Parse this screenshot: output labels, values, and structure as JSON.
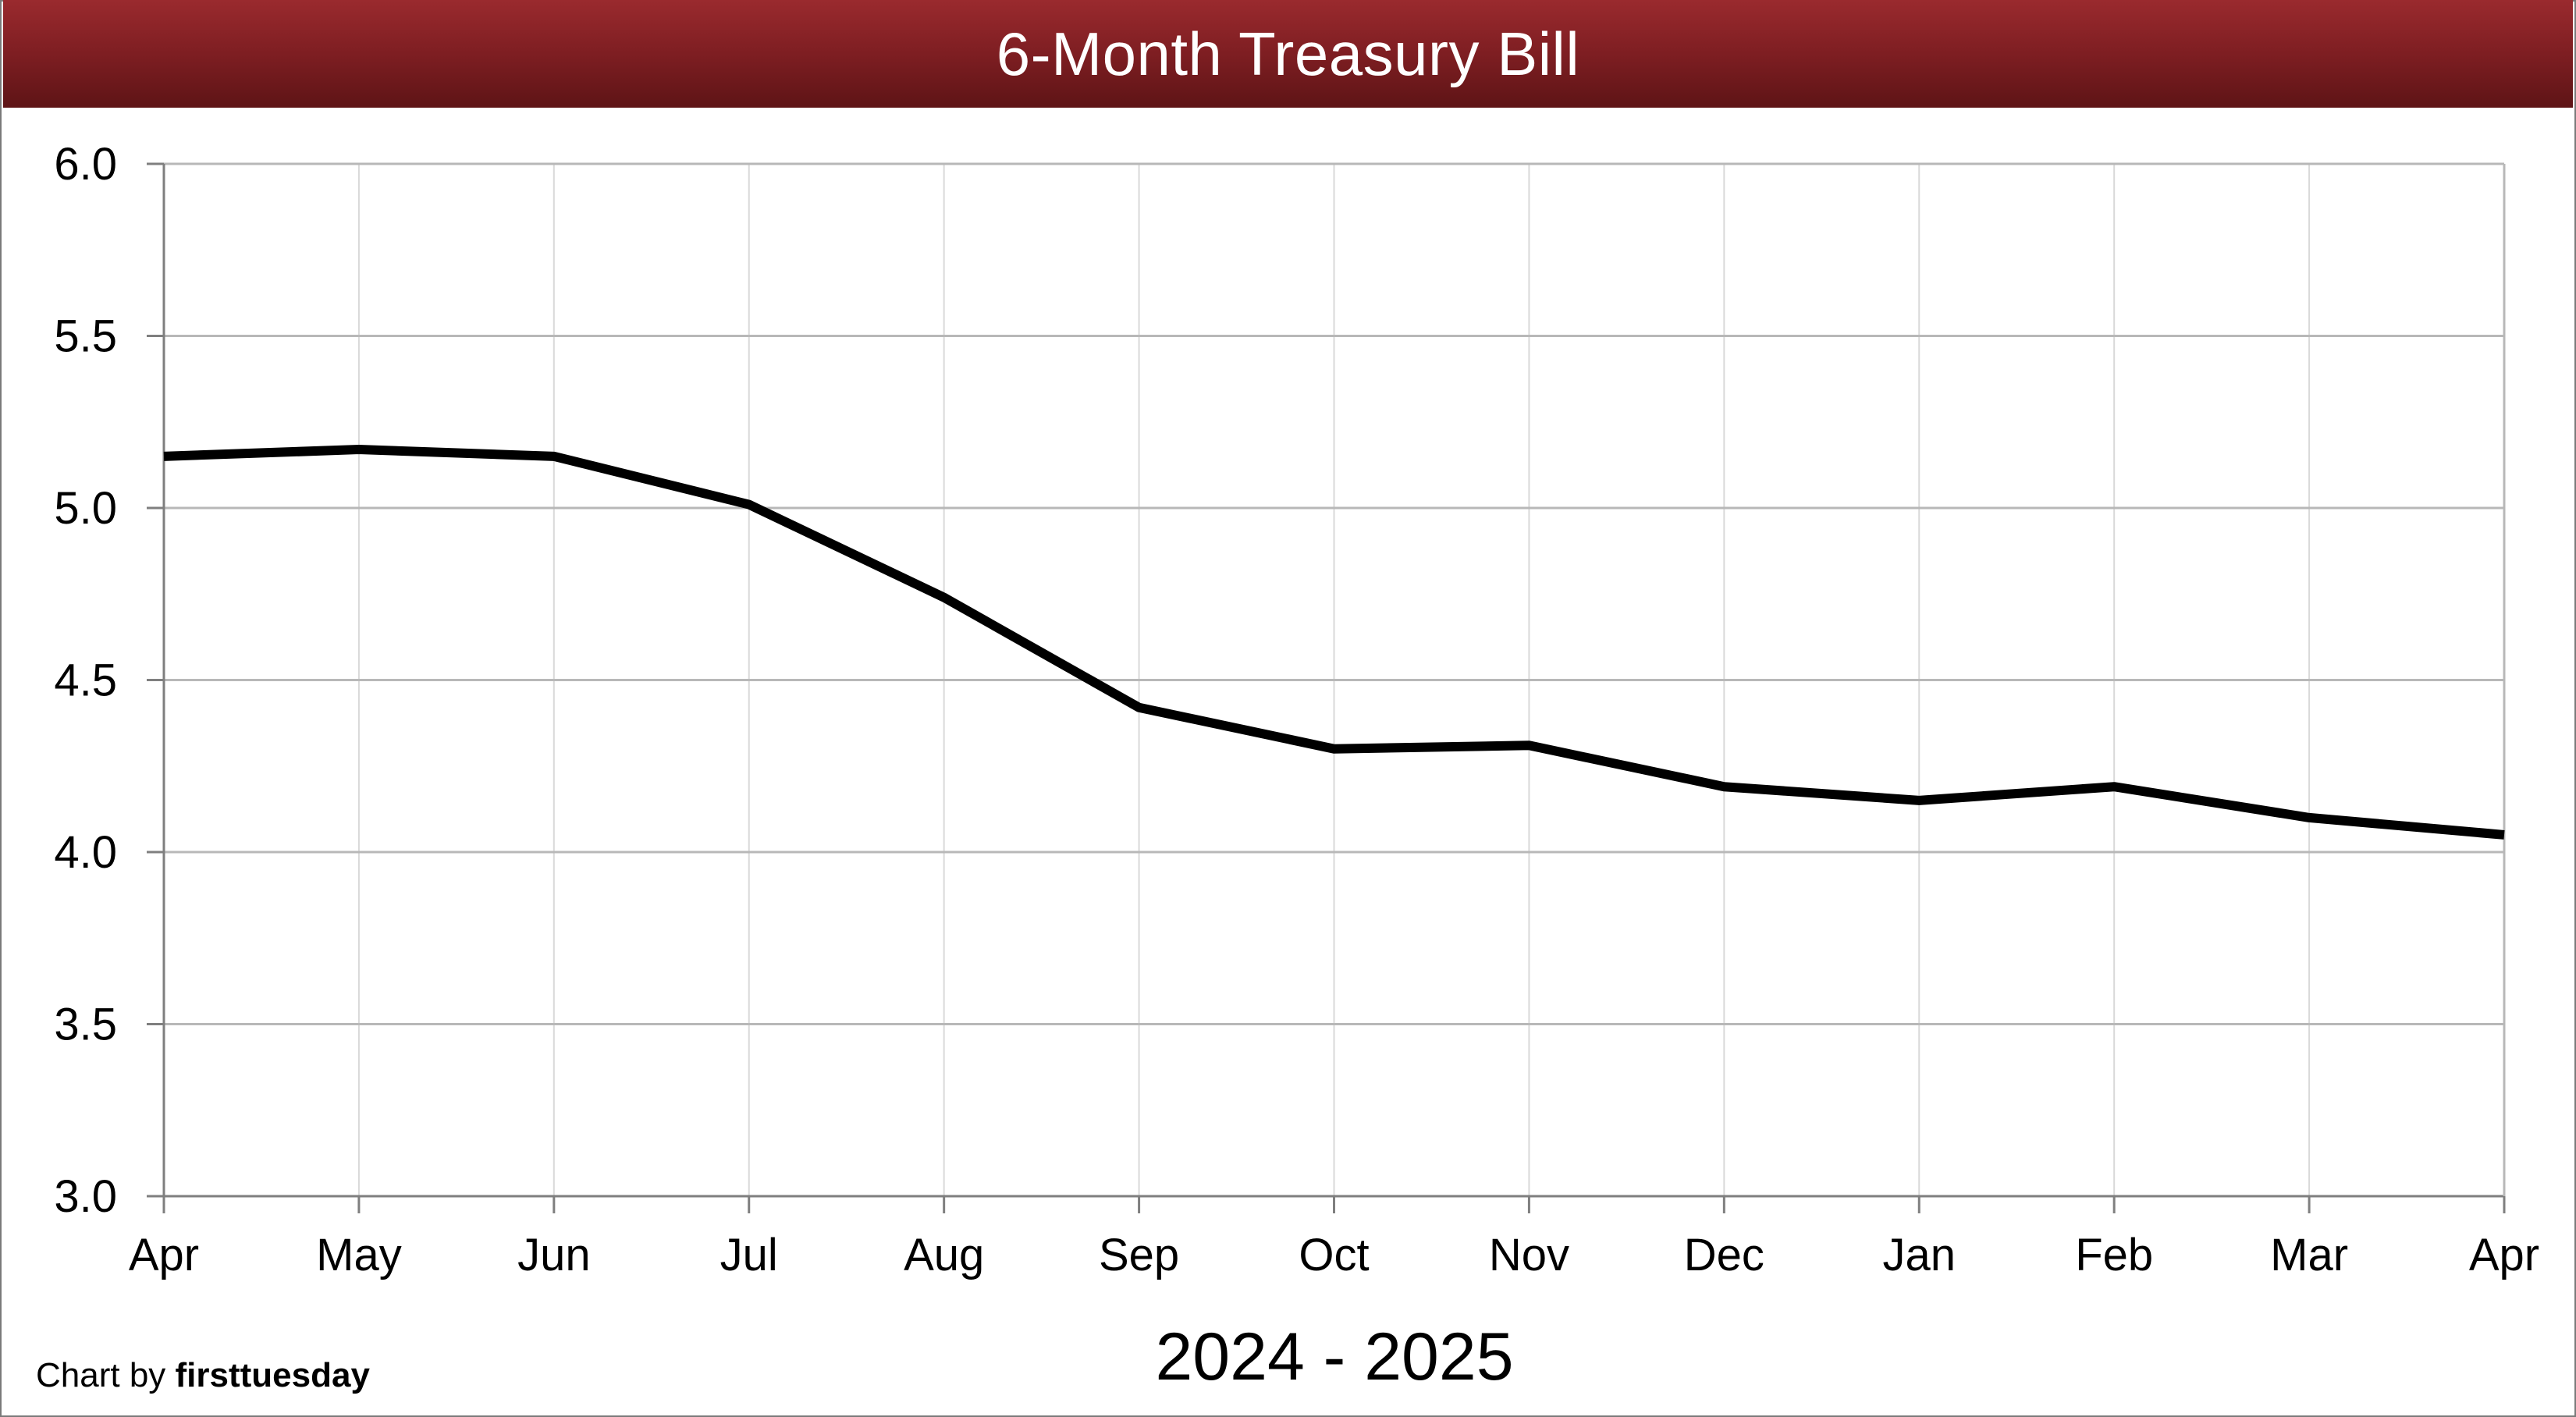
{
  "chart_data": {
    "type": "line",
    "title": "6-Month Treasury Bill",
    "xlabel": "2024 - 2025",
    "ylabel": "",
    "categories": [
      "Apr",
      "May",
      "Jun",
      "Jul",
      "Aug",
      "Sep",
      "Oct",
      "Nov",
      "Dec",
      "Jan",
      "Feb",
      "Mar",
      "Apr"
    ],
    "series": [
      {
        "values": [
          5.15,
          5.17,
          5.15,
          5.01,
          4.74,
          4.42,
          4.3,
          4.31,
          4.19,
          4.15,
          4.19,
          4.1,
          4.05
        ]
      }
    ],
    "ylim": [
      3.0,
      6.0
    ],
    "yticks": [
      "3.0",
      "3.5",
      "4.0",
      "4.5",
      "5.0",
      "5.5",
      "6.0"
    ],
    "grid": true,
    "legend": "none",
    "line_color": "#000000"
  },
  "credit": {
    "prefix": "Chart by ",
    "brand": "firsttuesday"
  }
}
